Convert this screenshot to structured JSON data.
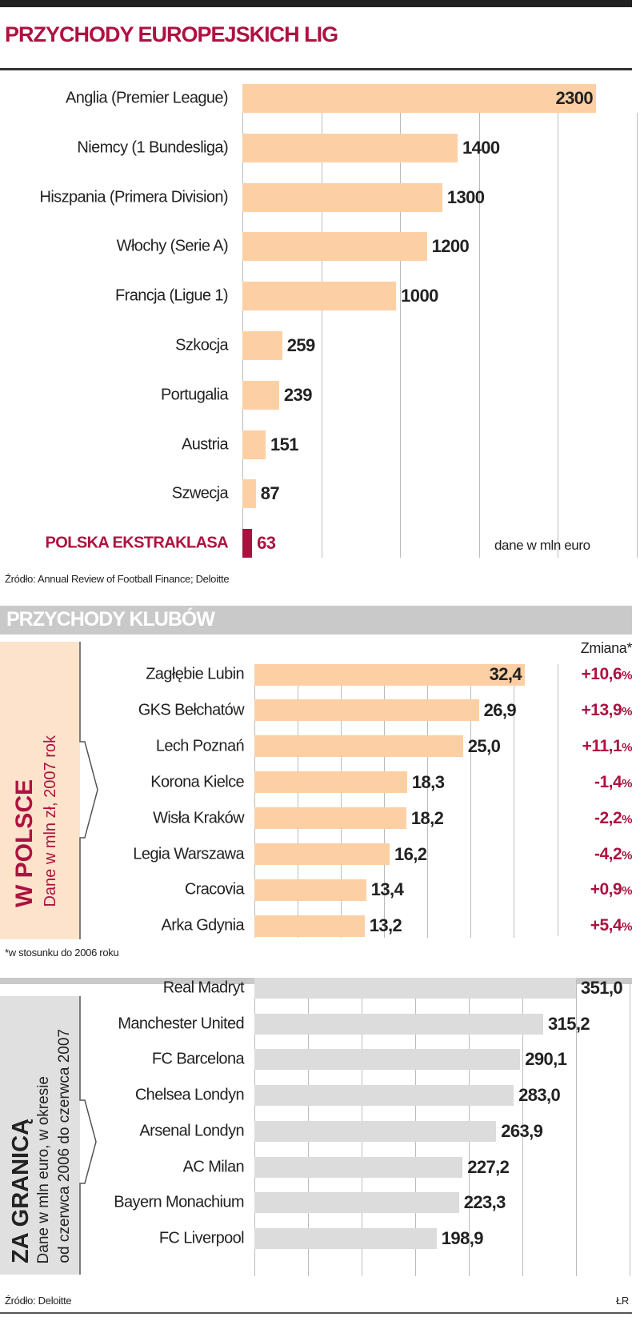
{
  "colors": {
    "accent": "#ad1240",
    "bar_peach": "#fcd0a4",
    "bar_gray": "#dcdcdc",
    "polska": "#a8123e"
  },
  "header": {
    "title": "PRZYCHODY EUROPEJSKICH LIG"
  },
  "chart_data": [
    {
      "type": "bar",
      "orientation": "horizontal",
      "title": "PRZYCHODY EUROPEJSKICH LIG",
      "unit_note": "dane w mln euro",
      "source": "Źródło: Annual Review of Football Finance; Deloitte",
      "categories": [
        "Anglia (Premier League)",
        "Niemcy (1 Bundesliga)",
        "Hiszpania (Primera Division)",
        "Włochy (Serie A)",
        "Francja (Ligue 1)",
        "Szkocja",
        "Portugalia",
        "Austria",
        "Szwecja",
        "POLSKA EKSTRAKLASA"
      ],
      "values": [
        2300,
        1400,
        1300,
        1200,
        1000,
        259,
        239,
        151,
        87,
        63
      ],
      "labels": [
        "2300",
        "1400",
        "1300",
        "1200",
        "1000",
        "259",
        "239",
        "151",
        "87",
        "63"
      ],
      "highlight_index": 9,
      "xlim": [
        0,
        2500
      ]
    },
    {
      "type": "bar",
      "orientation": "horizontal",
      "section_title": "PRZYCHODY KLUBÓW",
      "panel_title": "W POLSCE",
      "panel_subtitle": "Dane w mln zł, 2007 rok",
      "change_header": "Zmiana*",
      "footnote": "*w stosunku do 2006 roku",
      "categories": [
        "Zagłębie Lubin",
        "GKS Bełchatów",
        "Lech Poznań",
        "Korona Kielce",
        "Wisła Kraków",
        "Legia Warszawa",
        "Cracovia",
        "Arka Gdynia"
      ],
      "values": [
        32.4,
        26.9,
        25.0,
        18.3,
        18.2,
        16.2,
        13.4,
        13.2
      ],
      "labels": [
        "32,4",
        "26,9",
        "25,0",
        "18,3",
        "18,2",
        "16,2",
        "13,4",
        "13,2"
      ],
      "change": [
        "+10,6",
        "+13,9",
        "+11,1",
        "-1,4",
        "-2,2",
        "-4,2",
        "+0,9",
        "+5,4"
      ],
      "change_unit": "%",
      "xlim": [
        0,
        35
      ]
    },
    {
      "type": "bar",
      "orientation": "horizontal",
      "panel_title": "ZA GRANICĄ",
      "panel_subtitle_1": "Dane w mln euro, w okresie",
      "panel_subtitle_2": "od czerwca 2006 do czerwca 2007",
      "source": "Źródło: Deloitte",
      "credit": "ŁR",
      "categories": [
        "Real Madryt",
        "Manchester United",
        "FC Barcelona",
        "Chelsea Londyn",
        "Arsenal Londyn",
        "AC Milan",
        "Bayern Monachium",
        "FC Liverpool"
      ],
      "values": [
        351.0,
        315.2,
        290.1,
        283.0,
        263.9,
        227.2,
        223.3,
        198.9
      ],
      "labels": [
        "351,0",
        "315,2",
        "290,1",
        "283,0",
        "263,9",
        "227,2",
        "223,3",
        "198,9"
      ],
      "xlim": [
        0,
        420
      ]
    }
  ]
}
